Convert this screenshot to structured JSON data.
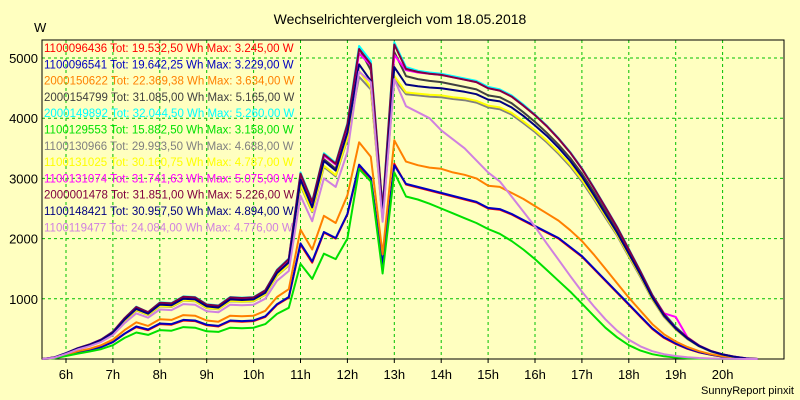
{
  "chart_data": {
    "type": "line",
    "title": "Wechselrichtervergleich vom 18.05.2018",
    "ylabel": "W",
    "xlabel": "",
    "credit": "SunnyReport pinxit",
    "ylim": [
      0,
      5300
    ],
    "x_tick_labels": [
      "6h",
      "7h",
      "8h",
      "9h",
      "10h",
      "11h",
      "12h",
      "13h",
      "14h",
      "15h",
      "16h",
      "17h",
      "18h",
      "19h",
      "20h"
    ],
    "y_ticks": [
      1000,
      2000,
      3000,
      4000,
      5000
    ],
    "grid": true,
    "legend_position": "top-left",
    "x": [
      "05:30",
      "05:45",
      "06:00",
      "06:15",
      "06:30",
      "06:45",
      "07:00",
      "07:15",
      "07:30",
      "07:45",
      "08:00",
      "08:15",
      "08:30",
      "08:45",
      "09:00",
      "09:15",
      "09:30",
      "09:45",
      "10:00",
      "10:15",
      "10:30",
      "10:45",
      "11:00",
      "11:15",
      "11:30",
      "11:45",
      "12:00",
      "12:15",
      "12:30",
      "12:45",
      "13:00",
      "13:15",
      "13:30",
      "13:45",
      "14:00",
      "14:15",
      "14:30",
      "14:45",
      "15:00",
      "15:15",
      "15:30",
      "15:45",
      "16:00",
      "16:15",
      "16:30",
      "16:45",
      "17:00",
      "17:15",
      "17:30",
      "17:45",
      "18:00",
      "18:15",
      "18:30",
      "18:45",
      "19:00",
      "19:15",
      "19:30",
      "19:45",
      "20:00",
      "20:15",
      "20:30",
      "20:45"
    ],
    "series": [
      {
        "name": "1100096436 Tot: 19.532,50 Wh Max: 3.245,00 W",
        "color": "#ff0000",
        "values": [
          0,
          15,
          60,
          110,
          150,
          200,
          280,
          420,
          530,
          480,
          580,
          570,
          640,
          630,
          560,
          540,
          630,
          620,
          630,
          700,
          900,
          1020,
          1900,
          1600,
          2100,
          2000,
          2400,
          3200,
          3000,
          1550,
          3245,
          2900,
          2850,
          2800,
          2750,
          2700,
          2650,
          2600,
          2500,
          2480,
          2400,
          2300,
          2200,
          2100,
          2000,
          1850,
          1700,
          1500,
          1300,
          1100,
          900,
          700,
          500,
          350,
          250,
          170,
          110,
          70,
          40,
          20,
          5,
          0
        ]
      },
      {
        "name": "1100096541 Tot: 19.642,25 Wh Max: 3.229,00 W",
        "color": "#0000c0",
        "values": [
          0,
          15,
          60,
          110,
          150,
          200,
          280,
          420,
          540,
          490,
          590,
          580,
          650,
          640,
          570,
          550,
          640,
          630,
          640,
          710,
          910,
          1030,
          1920,
          1620,
          2110,
          2010,
          2410,
          3229,
          3010,
          1560,
          3220,
          2910,
          2860,
          2810,
          2760,
          2710,
          2660,
          2610,
          2510,
          2490,
          2410,
          2310,
          2210,
          2110,
          2010,
          1860,
          1710,
          1510,
          1310,
          1110,
          910,
          710,
          510,
          360,
          260,
          175,
          115,
          72,
          42,
          22,
          6,
          0
        ]
      },
      {
        "name": "2000150622 Tot: 22.369,38 Wh Max: 3.634,00 W",
        "color": "#ff8000",
        "values": [
          0,
          18,
          70,
          130,
          170,
          230,
          320,
          480,
          610,
          550,
          660,
          650,
          730,
          720,
          640,
          620,
          720,
          710,
          720,
          800,
          1030,
          1160,
          2150,
          1820,
          2380,
          2260,
          2720,
          3600,
          3360,
          1740,
          3634,
          3280,
          3220,
          3180,
          3160,
          3100,
          3060,
          3000,
          2880,
          2860,
          2760,
          2660,
          2540,
          2420,
          2300,
          2140,
          1960,
          1740,
          1500,
          1260,
          1020,
          800,
          580,
          410,
          290,
          200,
          130,
          80,
          48,
          25,
          7,
          0
        ]
      },
      {
        "name": "2000154799 Tot: 31.085,00 Wh Max: 5.165,00 W",
        "color": "#404040",
        "values": [
          0,
          25,
          95,
          175,
          235,
          315,
          440,
          660,
          840,
          760,
          910,
          900,
          1010,
          1000,
          880,
          860,
          1000,
          990,
          1000,
          1110,
          1440,
          1620,
          3000,
          2540,
          3320,
          3160,
          3800,
          5165,
          4800,
          2420,
          5100,
          4700,
          4650,
          4620,
          4600,
          4560,
          4520,
          4480,
          4380,
          4350,
          4250,
          4100,
          3940,
          3760,
          3560,
          3340,
          3080,
          2780,
          2460,
          2140,
          1780,
          1420,
          1040,
          740,
          520,
          350,
          220,
          130,
          75,
          38,
          10,
          0
        ]
      },
      {
        "name": "2000149892 Tot: 32.044,50 Wh Max: 5.260,00 W",
        "color": "#00ffff",
        "values": [
          0,
          26,
          98,
          180,
          242,
          325,
          455,
          680,
          870,
          780,
          940,
          930,
          1040,
          1030,
          910,
          890,
          1030,
          1020,
          1030,
          1145,
          1485,
          1670,
          3100,
          2620,
          3420,
          3260,
          3920,
          5200,
          4950,
          2500,
          5260,
          4850,
          4790,
          4760,
          4740,
          4700,
          4660,
          4620,
          4520,
          4480,
          4380,
          4230,
          4060,
          3880,
          3670,
          3440,
          3170,
          2860,
          2530,
          2200,
          1830,
          1460,
          1070,
          760,
          535,
          360,
          225,
          135,
          78,
          40,
          11,
          0
        ]
      },
      {
        "name": "1100129553 Tot: 15.882,50 Wh Max: 3.158,00 W",
        "color": "#00e000",
        "values": [
          0,
          12,
          50,
          90,
          125,
          165,
          230,
          350,
          440,
          400,
          480,
          470,
          530,
          520,
          460,
          450,
          520,
          510,
          520,
          580,
          750,
          850,
          1580,
          1330,
          1750,
          1660,
          2000,
          3158,
          2950,
          1420,
          3100,
          2700,
          2650,
          2580,
          2500,
          2420,
          2340,
          2260,
          2160,
          2080,
          1960,
          1820,
          1660,
          1480,
          1300,
          1120,
          920,
          720,
          520,
          360,
          230,
          140,
          80,
          45,
          25,
          14,
          8,
          4,
          2,
          1,
          0,
          0
        ]
      },
      {
        "name": "1100130966 Tot: 29.993,50 Wh Max: 4.688,00 W",
        "color": "#808080",
        "values": [
          0,
          24,
          90,
          168,
          225,
          302,
          422,
          634,
          806,
          730,
          874,
          864,
          970,
          960,
          845,
          826,
          960,
          950,
          960,
          1066,
          1382,
          1555,
          2880,
          2440,
          3190,
          3035,
          3650,
          4688,
          4480,
          2320,
          4650,
          4400,
          4380,
          4360,
          4350,
          4320,
          4300,
          4260,
          4180,
          4150,
          4060,
          3920,
          3770,
          3600,
          3410,
          3200,
          2950,
          2660,
          2350,
          2050,
          1700,
          1360,
          990,
          700,
          490,
          330,
          210,
          125,
          72,
          36,
          9,
          0
        ]
      },
      {
        "name": "1100131025 Tot: 30.160,75 Wh Max: 4.787,00 W",
        "color": "#ffff00",
        "values": [
          0,
          24,
          91,
          169,
          227,
          304,
          425,
          638,
          812,
          735,
          880,
          870,
          976,
          966,
          851,
          831,
          966,
          956,
          966,
          1073,
          1391,
          1565,
          2900,
          2455,
          3210,
          3055,
          3670,
          4787,
          4510,
          2330,
          4700,
          4430,
          4410,
          4390,
          4380,
          4350,
          4330,
          4290,
          4210,
          4180,
          4090,
          3950,
          3800,
          3630,
          3440,
          3230,
          2980,
          2690,
          2380,
          2070,
          1720,
          1380,
          1000,
          710,
          495,
          335,
          212,
          127,
          73,
          37,
          9,
          0
        ]
      },
      {
        "name": "1100131074 Tot: 31.741,63 Wh Max: 5.075,00 W",
        "color": "#ff00ff",
        "values": [
          0,
          26,
          97,
          178,
          240,
          322,
          450,
          675,
          860,
          775,
          930,
          920,
          1030,
          1020,
          900,
          880,
          1020,
          1010,
          1020,
          1135,
          1470,
          1655,
          3070,
          2600,
          3380,
          3230,
          3880,
          5075,
          4880,
          2470,
          5050,
          4800,
          4760,
          4740,
          4720,
          4680,
          4640,
          4600,
          4500,
          4460,
          4360,
          4210,
          4050,
          3870,
          3660,
          3430,
          3160,
          2850,
          2520,
          2190,
          1820,
          1450,
          1060,
          760,
          700,
          360,
          225,
          135,
          78,
          40,
          11,
          0
        ]
      },
      {
        "name": "2000001478 Tot: 31.851,00 Wh Max: 5.226,00 W",
        "color": "#800040",
        "values": [
          0,
          26,
          97,
          179,
          241,
          323,
          452,
          678,
          864,
          778,
          934,
          924,
          1034,
          1024,
          904,
          884,
          1024,
          1014,
          1024,
          1140,
          1476,
          1662,
          3080,
          2610,
          3400,
          3245,
          3900,
          5150,
          4900,
          2480,
          5226,
          4820,
          4770,
          4740,
          4720,
          4680,
          4640,
          4600,
          4500,
          4460,
          4360,
          4210,
          4050,
          3870,
          3660,
          3430,
          3160,
          2850,
          2520,
          2190,
          1820,
          1450,
          1060,
          750,
          525,
          355,
          222,
          133,
          77,
          39,
          10,
          0
        ]
      },
      {
        "name": "1100148421 Tot: 30.957,50 Wh Max: 4.894,00 W",
        "color": "#000080",
        "values": [
          0,
          25,
          94,
          173,
          233,
          312,
          436,
          654,
          833,
          752,
          903,
          893,
          1000,
          990,
          874,
          854,
          990,
          980,
          990,
          1101,
          1427,
          1605,
          2980,
          2520,
          3290,
          3130,
          3760,
          4894,
          4620,
          2380,
          4850,
          4560,
          4530,
          4510,
          4500,
          4470,
          4440,
          4400,
          4310,
          4280,
          4180,
          4040,
          3880,
          3710,
          3510,
          3290,
          3030,
          2730,
          2410,
          2100,
          1750,
          1400,
          1020,
          720,
          505,
          340,
          215,
          128,
          74,
          37,
          9,
          0
        ]
      },
      {
        "name": "1100119477 Tot: 24.084,00 Wh Max: 4.776,00 W",
        "color": "#d080e0",
        "values": [
          0,
          22,
          85,
          158,
          212,
          284,
          397,
          596,
          758,
          686,
          822,
          812,
          912,
          902,
          794,
          776,
          902,
          892,
          902,
          1002,
          1300,
          1462,
          2710,
          2290,
          3000,
          2860,
          3440,
          4776,
          4600,
          2280,
          4650,
          4200,
          4100,
          4000,
          3800,
          3650,
          3500,
          3300,
          3100,
          2950,
          2700,
          2450,
          2200,
          1920,
          1650,
          1380,
          1120,
          880,
          660,
          470,
          320,
          210,
          130,
          80,
          50,
          30,
          17,
          9,
          4,
          2,
          0,
          0
        ]
      }
    ]
  }
}
